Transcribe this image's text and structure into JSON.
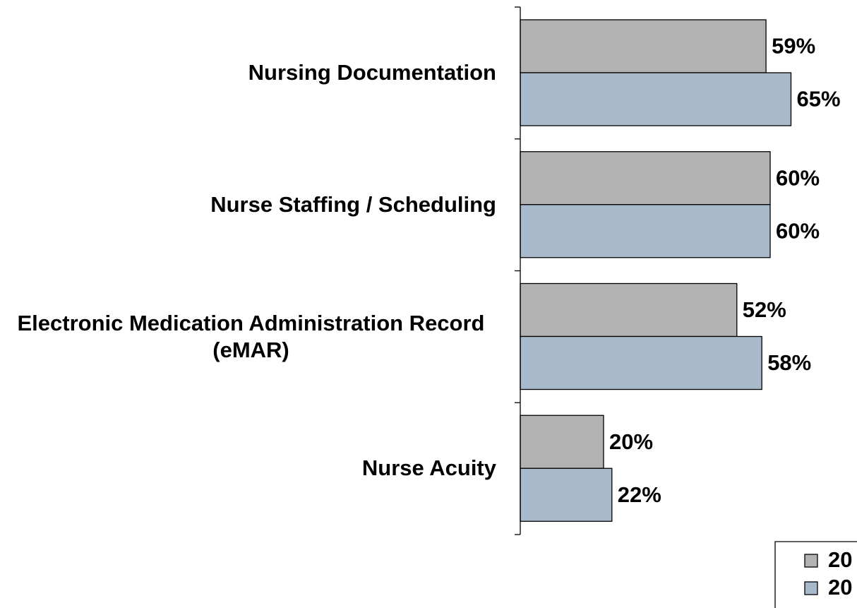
{
  "chart_data": {
    "type": "hbar",
    "categories": [
      "Nursing Documentation",
      "Nurse Staffing / Scheduling",
      "Electronic Medication Administration Record (eMAR)",
      "Nurse Acuity"
    ],
    "series": [
      {
        "name": "20",
        "color": "#b2b2b2",
        "values": [
          59,
          60,
          52,
          20
        ],
        "value_labels": [
          "59%",
          "60%",
          "52%",
          "20%"
        ]
      },
      {
        "name": "20",
        "color": "#a9b9cc",
        "values": [
          65,
          60,
          58,
          22
        ],
        "value_labels": [
          "65%",
          "60%",
          "58%",
          "22%"
        ]
      }
    ],
    "xlim": [
      0,
      100
    ]
  }
}
